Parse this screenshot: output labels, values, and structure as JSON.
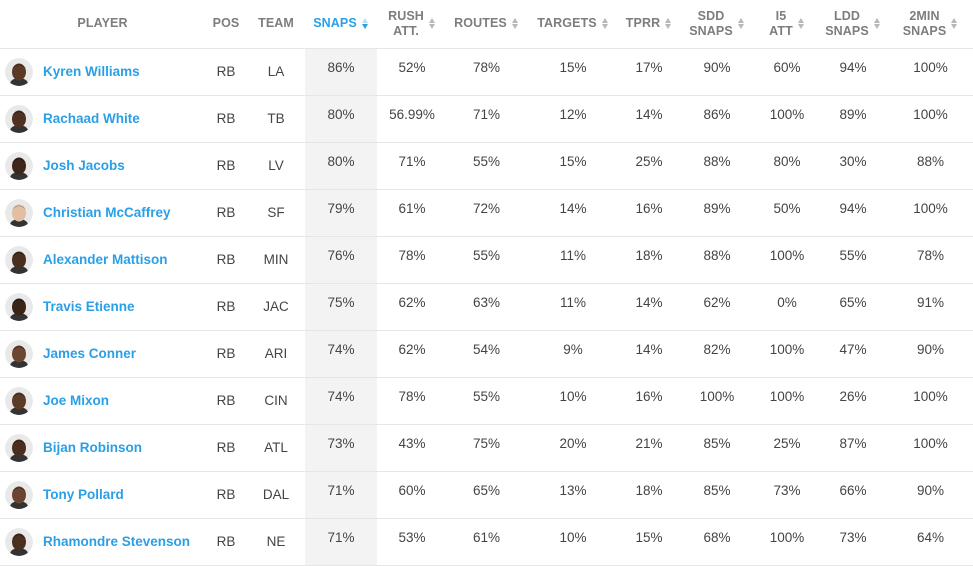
{
  "columns": {
    "player": "PLAYER",
    "pos": "POS",
    "team": "TEAM",
    "snaps": "SNAPS",
    "rush_att": [
      "RUSH",
      "ATT."
    ],
    "routes": "ROUTES",
    "targets": "TARGETS",
    "tprr": "TPRR",
    "sdd_snaps": [
      "SDD",
      "SNAPS"
    ],
    "i5_att": [
      "I5",
      "ATT"
    ],
    "ldd_snaps": [
      "LDD",
      "SNAPS"
    ],
    "two_min_snaps": [
      "2MIN",
      "SNAPS"
    ]
  },
  "sort": {
    "column": "snaps",
    "direction": "descending",
    "active_color": "#2b9fe6"
  },
  "rows": [
    {
      "name": "Kyren Williams",
      "pos": "RB",
      "team": "LA",
      "snaps": "86%",
      "rush_att": "52%",
      "routes": "78%",
      "targets": "15%",
      "tprr": "17%",
      "sdd": "90%",
      "i5": "60%",
      "ldd": "94%",
      "two_min": "100%",
      "avatar": {
        "skin": "#5a3a26",
        "hair": "#1e1410"
      }
    },
    {
      "name": "Rachaad White",
      "pos": "RB",
      "team": "TB",
      "snaps": "80%",
      "rush_att": "56.99%",
      "routes": "71%",
      "targets": "12%",
      "tprr": "14%",
      "sdd": "86%",
      "i5": "100%",
      "ldd": "89%",
      "two_min": "100%",
      "avatar": {
        "skin": "#4e3121",
        "hair": "#140d09"
      }
    },
    {
      "name": "Josh Jacobs",
      "pos": "RB",
      "team": "LV",
      "snaps": "80%",
      "rush_att": "71%",
      "routes": "55%",
      "targets": "15%",
      "tprr": "25%",
      "sdd": "88%",
      "i5": "80%",
      "ldd": "30%",
      "two_min": "88%",
      "avatar": {
        "skin": "#3e271a",
        "hair": "#0f0a07"
      }
    },
    {
      "name": "Christian McCaffrey",
      "pos": "RB",
      "team": "SF",
      "snaps": "79%",
      "rush_att": "61%",
      "routes": "72%",
      "targets": "14%",
      "tprr": "16%",
      "sdd": "89%",
      "i5": "50%",
      "ldd": "94%",
      "two_min": "100%",
      "avatar": {
        "skin": "#e2bfa2",
        "hair": "#8a6a4c"
      }
    },
    {
      "name": "Alexander Mattison",
      "pos": "RB",
      "team": "MIN",
      "snaps": "76%",
      "rush_att": "78%",
      "routes": "55%",
      "targets": "11%",
      "tprr": "18%",
      "sdd": "88%",
      "i5": "100%",
      "ldd": "55%",
      "two_min": "78%",
      "avatar": {
        "skin": "#4a2e1f",
        "hair": "#120c08"
      }
    },
    {
      "name": "Travis Etienne",
      "pos": "RB",
      "team": "JAC",
      "snaps": "75%",
      "rush_att": "62%",
      "routes": "63%",
      "targets": "11%",
      "tprr": "14%",
      "sdd": "62%",
      "i5": "0%",
      "ldd": "65%",
      "two_min": "91%",
      "avatar": {
        "skin": "#3a2418",
        "hair": "#0c0806"
      }
    },
    {
      "name": "James Conner",
      "pos": "RB",
      "team": "ARI",
      "snaps": "74%",
      "rush_att": "62%",
      "routes": "54%",
      "targets": "9%",
      "tprr": "14%",
      "sdd": "82%",
      "i5": "100%",
      "ldd": "47%",
      "two_min": "90%",
      "avatar": {
        "skin": "#6b4630",
        "hair": "#1a110b"
      }
    },
    {
      "name": "Joe Mixon",
      "pos": "RB",
      "team": "CIN",
      "snaps": "74%",
      "rush_att": "78%",
      "routes": "55%",
      "targets": "10%",
      "tprr": "16%",
      "sdd": "100%",
      "i5": "100%",
      "ldd": "26%",
      "two_min": "100%",
      "avatar": {
        "skin": "#5c3b27",
        "hair": "#1a120c"
      }
    },
    {
      "name": "Bijan Robinson",
      "pos": "RB",
      "team": "ATL",
      "snaps": "73%",
      "rush_att": "43%",
      "routes": "75%",
      "targets": "20%",
      "tprr": "21%",
      "sdd": "85%",
      "i5": "25%",
      "ldd": "87%",
      "two_min": "100%",
      "avatar": {
        "skin": "#4a2f20",
        "hair": "#100a07"
      }
    },
    {
      "name": "Tony Pollard",
      "pos": "RB",
      "team": "DAL",
      "snaps": "71%",
      "rush_att": "60%",
      "routes": "65%",
      "targets": "13%",
      "tprr": "18%",
      "sdd": "85%",
      "i5": "73%",
      "ldd": "66%",
      "two_min": "90%",
      "avatar": {
        "skin": "#6a4530",
        "hair": "#1c120c"
      }
    },
    {
      "name": "Rhamondre Stevenson",
      "pos": "RB",
      "team": "NE",
      "snaps": "71%",
      "rush_att": "53%",
      "routes": "61%",
      "targets": "10%",
      "tprr": "15%",
      "sdd": "68%",
      "i5": "100%",
      "ldd": "73%",
      "two_min": "64%",
      "avatar": {
        "skin": "#4b2f20",
        "hair": "#120c08"
      }
    }
  ]
}
